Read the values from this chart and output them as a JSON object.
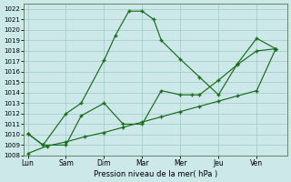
{
  "xlabel": "Pression niveau de la mer( hPa )",
  "background_color": "#cce8e8",
  "grid_color": "#a8cccc",
  "line_color": "#1a6b1a",
  "ylim": [
    1008,
    1022.5
  ],
  "yticks": [
    1008,
    1009,
    1010,
    1011,
    1012,
    1013,
    1014,
    1015,
    1016,
    1017,
    1018,
    1019,
    1020,
    1021,
    1022
  ],
  "x_labels": [
    "Lun",
    "Sam",
    "Dim",
    "Mar",
    "Mer",
    "Jeu",
    "Ven"
  ],
  "x_positions": [
    0,
    1,
    2,
    3,
    4,
    5,
    6
  ],
  "xlim": [
    -0.1,
    6.8
  ],
  "series1_x": [
    0.0,
    0.4,
    1.0,
    1.4,
    2.0,
    2.3,
    2.65,
    3.0,
    3.3,
    3.5,
    4.0,
    4.5,
    5.0,
    5.5,
    6.0,
    6.5
  ],
  "series1_y": [
    1010.1,
    1009.0,
    1012.0,
    1013.0,
    1017.1,
    1019.5,
    1021.8,
    1021.8,
    1021.0,
    1019.0,
    1017.2,
    1015.5,
    1013.8,
    1016.8,
    1019.2,
    1018.2
  ],
  "series2_x": [
    0.0,
    0.4,
    1.0,
    1.4,
    2.0,
    2.5,
    3.0,
    3.5,
    4.0,
    4.3,
    4.5,
    5.0,
    5.5,
    6.0,
    6.5
  ],
  "series2_y": [
    1010.1,
    1009.0,
    1009.0,
    1011.8,
    1013.0,
    1011.0,
    1011.0,
    1014.2,
    1013.8,
    1013.8,
    1013.8,
    1015.2,
    1016.7,
    1018.0,
    1018.2
  ],
  "series3_x": [
    0.0,
    0.5,
    1.0,
    1.5,
    2.0,
    2.5,
    3.0,
    3.5,
    4.0,
    4.5,
    5.0,
    5.5,
    6.0,
    6.5
  ],
  "series3_y": [
    1008.2,
    1008.9,
    1009.3,
    1009.8,
    1010.2,
    1010.7,
    1011.2,
    1011.7,
    1012.2,
    1012.7,
    1013.2,
    1013.7,
    1014.2,
    1018.2
  ]
}
